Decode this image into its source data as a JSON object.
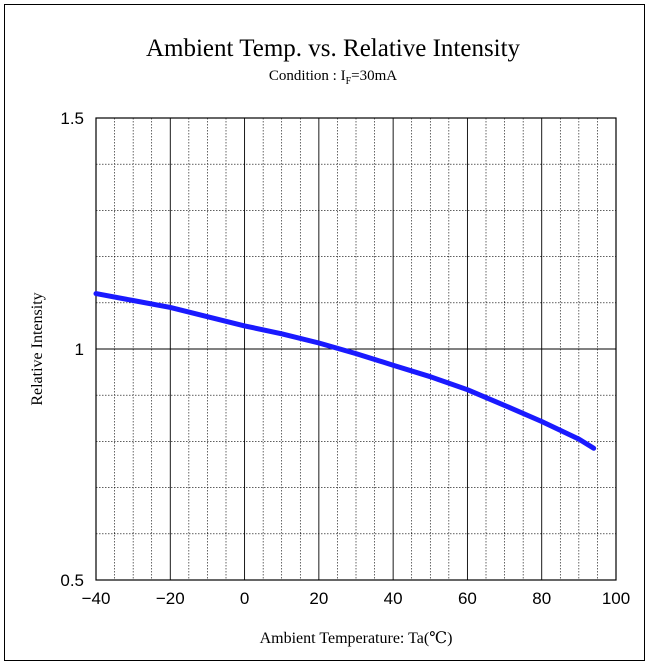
{
  "chart_data": {
    "type": "line",
    "title": "Ambient Temp. vs. Relative Intensity",
    "subtitle": {
      "prefix": "Condition : I",
      "subscript": "F",
      "suffix": "=30mA"
    },
    "xlabel": "Ambient Temperature: Ta(℃)",
    "ylabel": "Relative Intensity",
    "xlim": [
      -40,
      100
    ],
    "ylim": [
      0.5,
      1.5
    ],
    "x_ticks": [
      -40,
      -20,
      0,
      20,
      40,
      60,
      80,
      100
    ],
    "x_tick_labels": [
      "−40",
      "−20",
      "0",
      "20",
      "40",
      "60",
      "80",
      "100"
    ],
    "y_ticks": [
      0.5,
      1,
      1.5
    ],
    "y_tick_labels": [
      "0.5",
      "1",
      "1.5"
    ],
    "x_minor_step": 5,
    "y_minor_step": 0.1,
    "grid": true,
    "series_color": "#1a1aff",
    "series": [
      {
        "x": [
          -40,
          -30,
          -20,
          -10,
          0,
          10,
          20,
          30,
          40,
          50,
          60,
          70,
          80,
          90,
          94
        ],
        "y": [
          1.12,
          1.105,
          1.09,
          1.07,
          1.05,
          1.033,
          1.013,
          0.99,
          0.965,
          0.94,
          0.912,
          0.878,
          0.843,
          0.805,
          0.785
        ]
      }
    ]
  }
}
